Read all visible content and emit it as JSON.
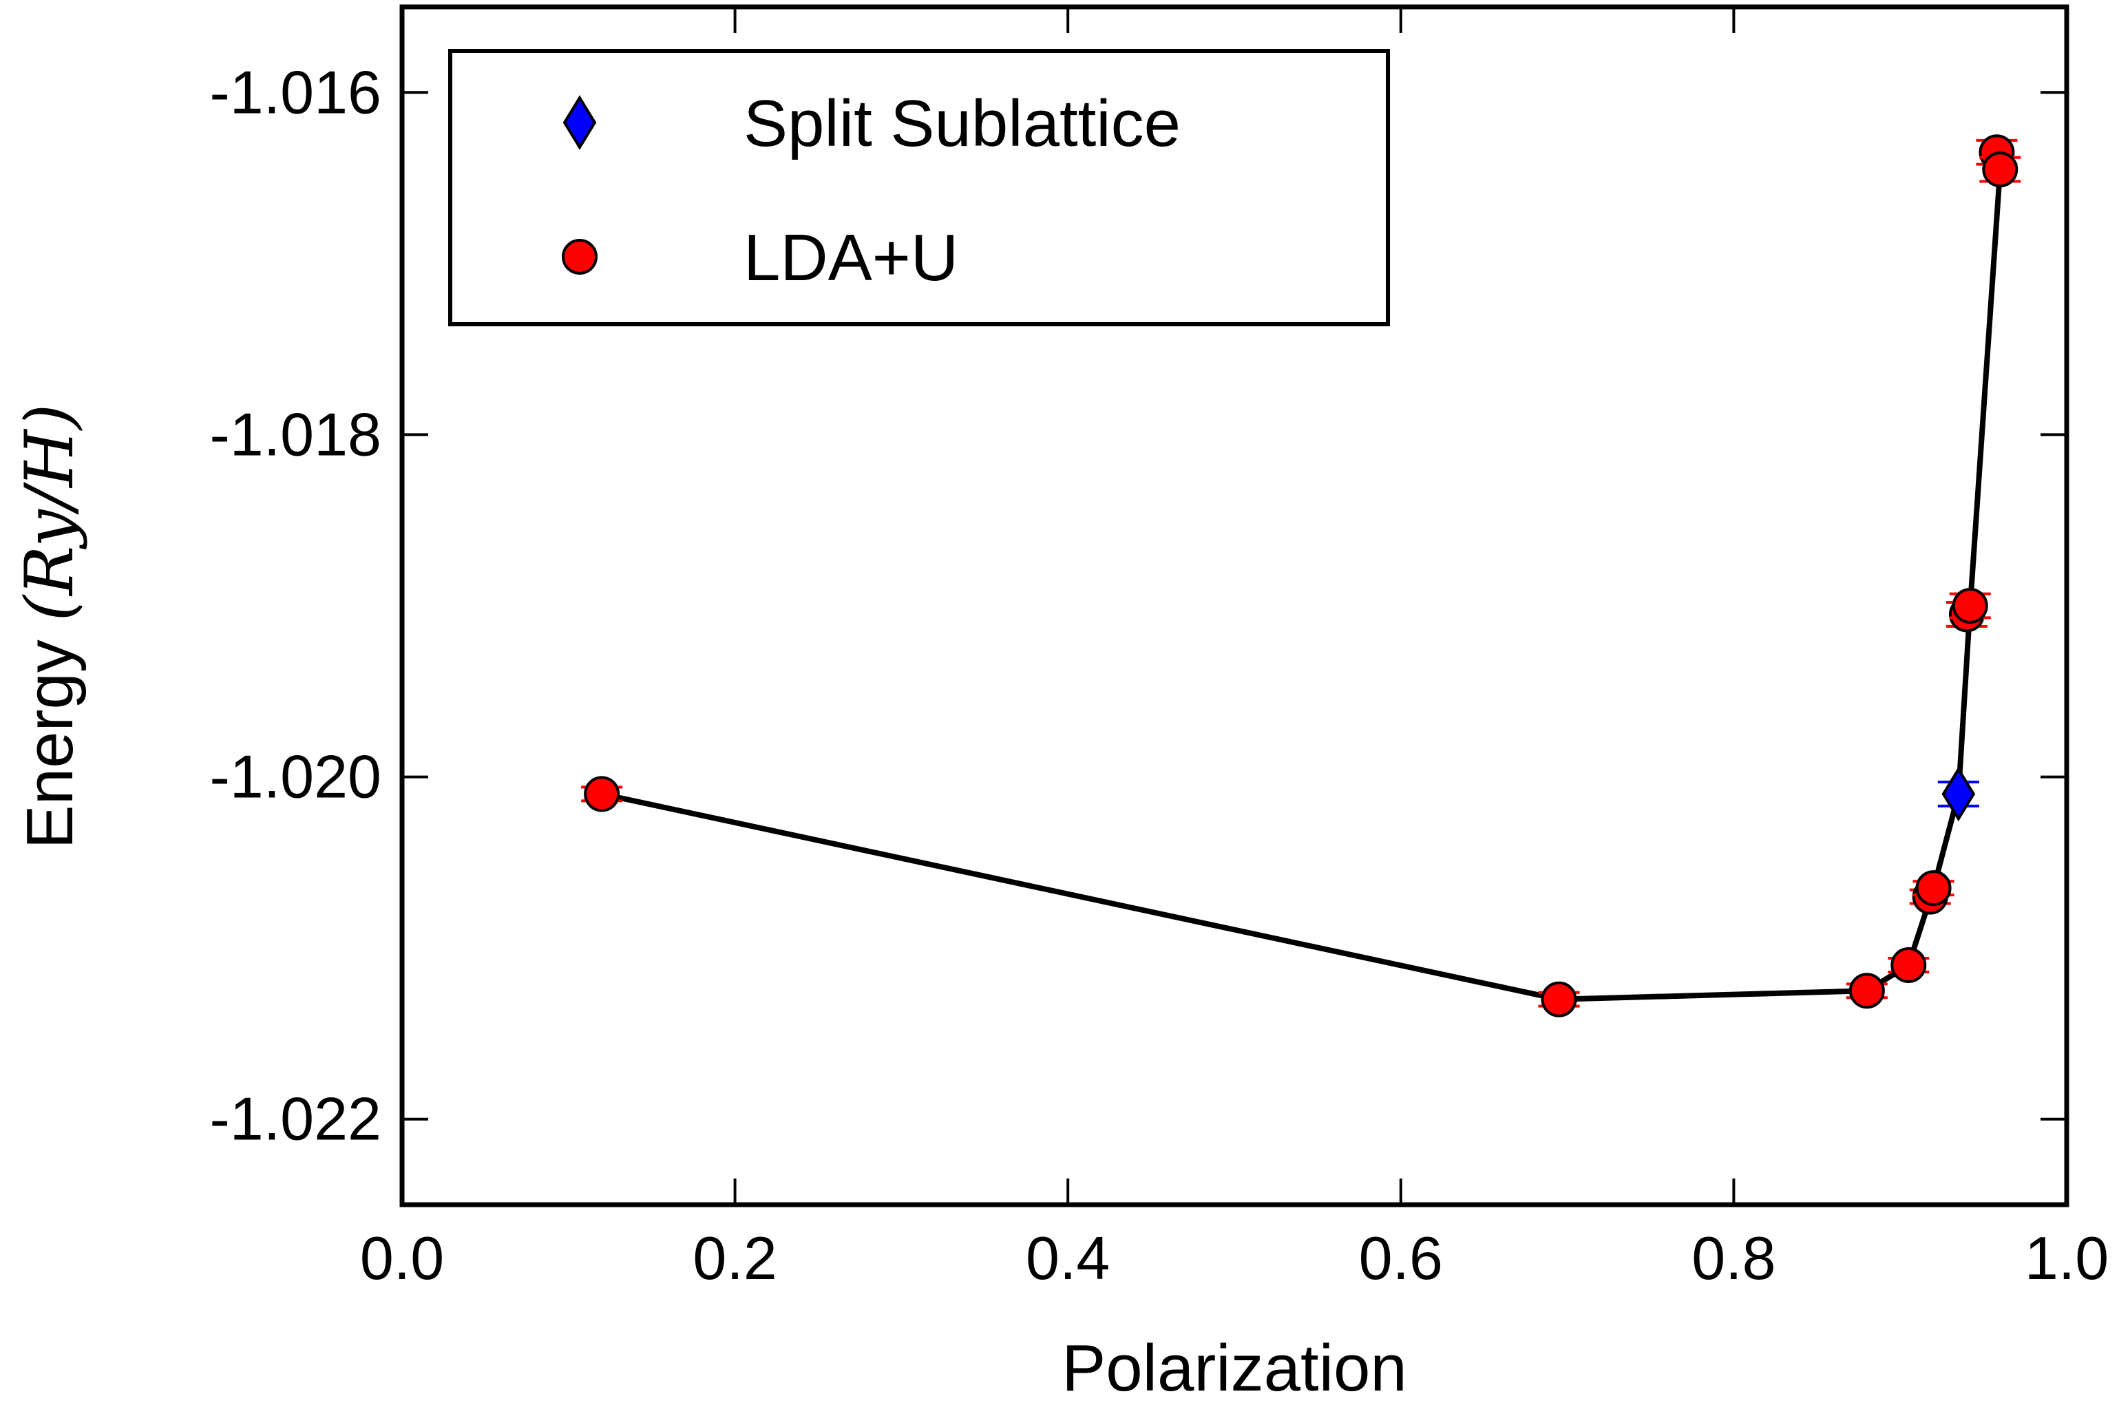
{
  "chart_data": {
    "type": "scatter",
    "title": "",
    "xlabel": "Polarization",
    "ylabel_prefix": "Energy",
    "ylabel_math": "(Ry/H)",
    "xlim": [
      0.0,
      1.0
    ],
    "ylim": [
      -1.0225,
      -1.0155
    ],
    "xticks": [
      0.0,
      0.2,
      0.4,
      0.6,
      0.8,
      1.0
    ],
    "xtick_labels": [
      "0.0",
      "0.2",
      "0.4",
      "0.6",
      "0.8",
      "1.0"
    ],
    "yticks": [
      -1.016,
      -1.018,
      -1.02,
      -1.022
    ],
    "ytick_labels": [
      "-1.016",
      "-1.018",
      "-1.020",
      "-1.022"
    ],
    "grid": false,
    "legend_position": "top-left",
    "series": [
      {
        "name": "Split Sublattice",
        "marker": "diamond",
        "color": "#0000ff",
        "errorbar_color": "#0000ff",
        "points": [
          {
            "x": 0.935,
            "y": -1.0201,
            "err": 7e-05
          }
        ]
      },
      {
        "name": "LDA+U",
        "marker": "circle",
        "color": "#ff0000",
        "errorbar_color": "#ff0000",
        "points": [
          {
            "x": 0.12,
            "y": -1.0201,
            "err": 4e-05
          },
          {
            "x": 0.695,
            "y": -1.0213,
            "err": 4e-05
          },
          {
            "x": 0.88,
            "y": -1.02125,
            "err": 4e-05
          },
          {
            "x": 0.905,
            "y": -1.0211,
            "err": 4e-05
          },
          {
            "x": 0.918,
            "y": -1.0207,
            "err": 4e-05
          },
          {
            "x": 0.92,
            "y": -1.02065,
            "err": 4e-05
          },
          {
            "x": 0.94,
            "y": -1.01905,
            "err": 7e-05
          },
          {
            "x": 0.942,
            "y": -1.019,
            "err": 7e-05
          },
          {
            "x": 0.958,
            "y": -1.01635,
            "err": 7e-05
          },
          {
            "x": 0.96,
            "y": -1.01645,
            "err": 7e-05
          }
        ]
      }
    ],
    "line": {
      "color": "#000000",
      "points": [
        {
          "x": 0.12,
          "y": -1.0201
        },
        {
          "x": 0.695,
          "y": -1.0213
        },
        {
          "x": 0.88,
          "y": -1.02125
        },
        {
          "x": 0.905,
          "y": -1.0211
        },
        {
          "x": 0.92,
          "y": -1.02065
        },
        {
          "x": 0.935,
          "y": -1.0201
        },
        {
          "x": 0.942,
          "y": -1.019
        },
        {
          "x": 0.96,
          "y": -1.01645
        }
      ]
    }
  }
}
